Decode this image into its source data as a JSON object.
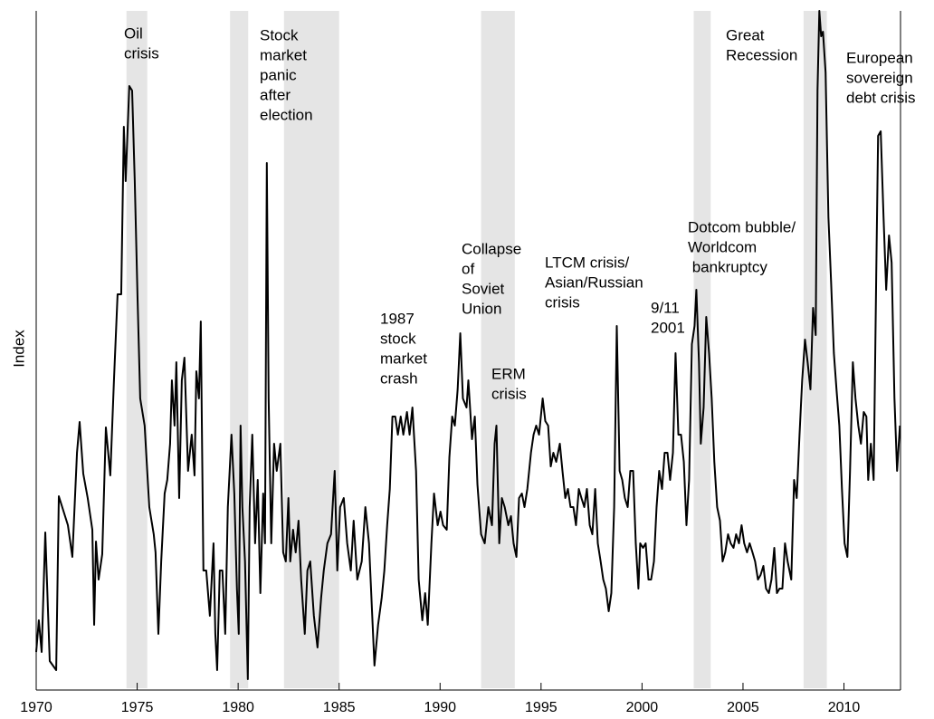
{
  "chart_data": {
    "type": "line",
    "y_label": "Index",
    "xlim": [
      1970,
      2012.8
    ],
    "ylim": [
      0,
      748
    ],
    "xticks": [
      1970,
      1975,
      1980,
      1985,
      1990,
      1995,
      2000,
      2005,
      2010
    ],
    "shaded_periods": [
      [
        1974.47,
        1975.5
      ],
      [
        1979.6,
        1980.5
      ],
      [
        1982.27,
        1985.0
      ],
      [
        1992.03,
        1993.7
      ],
      [
        2002.56,
        2003.4
      ],
      [
        2008.0,
        2009.15
      ]
    ],
    "shade_color": "#e5e5e5",
    "annotations": [
      {
        "lines": [
          "Oil",
          "crisis"
        ]
      },
      {
        "lines": [
          "Stock",
          "market",
          "panic",
          "after",
          "election"
        ]
      },
      {
        "lines": [
          "1987",
          "stock",
          "market",
          "crash"
        ]
      },
      {
        "lines": [
          "Collapse",
          "of",
          "Soviet",
          "Union"
        ]
      },
      {
        "lines": [
          "ERM",
          "crisis"
        ]
      },
      {
        "lines": [
          "LTCM crisis/",
          "Asian/Russian",
          "crisis"
        ]
      },
      {
        "lines": [
          "9/11",
          "2001"
        ]
      },
      {
        "lines": [
          "Dotcom bubble/",
          "Worldcom",
          " bankruptcy"
        ]
      },
      {
        "lines": [
          "Great",
          "Recession"
        ]
      },
      {
        "lines": [
          "European",
          "sovereign",
          "debt crisis"
        ]
      }
    ],
    "x": [
      1970.0,
      1970.13,
      1970.27,
      1970.45,
      1970.67,
      1970.99,
      1971.12,
      1971.57,
      1971.79,
      1972.02,
      1972.15,
      1972.33,
      1972.55,
      1972.78,
      1972.87,
      1972.96,
      1973.09,
      1973.27,
      1973.45,
      1973.67,
      1973.85,
      1974.03,
      1974.21,
      1974.34,
      1974.43,
      1974.61,
      1974.75,
      1974.88,
      1975.02,
      1975.15,
      1975.37,
      1975.6,
      1975.82,
      1975.91,
      1976.05,
      1976.19,
      1976.36,
      1976.49,
      1976.63,
      1976.72,
      1976.85,
      1976.94,
      1977.08,
      1977.21,
      1977.34,
      1977.52,
      1977.7,
      1977.84,
      1977.93,
      1978.06,
      1978.15,
      1978.28,
      1978.42,
      1978.6,
      1978.78,
      1978.87,
      1978.96,
      1979.09,
      1979.22,
      1979.36,
      1979.49,
      1979.67,
      1979.81,
      1979.94,
      1980.03,
      1980.12,
      1980.21,
      1980.34,
      1980.48,
      1980.57,
      1980.7,
      1980.84,
      1980.97,
      1981.1,
      1981.24,
      1981.33,
      1981.42,
      1981.51,
      1981.64,
      1981.78,
      1981.91,
      1982.09,
      1982.23,
      1982.36,
      1982.49,
      1982.58,
      1982.72,
      1982.85,
      1982.99,
      1983.12,
      1983.3,
      1983.43,
      1983.57,
      1983.75,
      1983.93,
      1984.11,
      1984.24,
      1984.42,
      1984.6,
      1984.78,
      1984.91,
      1985.05,
      1985.23,
      1985.4,
      1985.58,
      1985.72,
      1985.9,
      1986.12,
      1986.3,
      1986.48,
      1986.66,
      1986.75,
      1986.93,
      1987.11,
      1987.24,
      1987.38,
      1987.51,
      1987.64,
      1987.78,
      1987.91,
      1988.05,
      1988.18,
      1988.36,
      1988.49,
      1988.63,
      1988.81,
      1988.94,
      1989.12,
      1989.26,
      1989.39,
      1989.57,
      1989.7,
      1989.88,
      1990.02,
      1990.15,
      1990.33,
      1990.46,
      1990.6,
      1990.73,
      1990.87,
      1991.0,
      1991.13,
      1991.31,
      1991.4,
      1991.58,
      1991.72,
      1991.85,
      1992.03,
      1992.21,
      1992.39,
      1992.57,
      1992.7,
      1992.79,
      1992.93,
      1993.06,
      1993.2,
      1993.38,
      1993.51,
      1993.64,
      1993.78,
      1993.91,
      1994.05,
      1994.18,
      1994.32,
      1994.5,
      1994.63,
      1994.76,
      1994.9,
      1995.08,
      1995.21,
      1995.35,
      1995.48,
      1995.61,
      1995.75,
      1995.93,
      1996.06,
      1996.2,
      1996.33,
      1996.46,
      1996.6,
      1996.73,
      1996.87,
      1997.0,
      1997.14,
      1997.27,
      1997.41,
      1997.54,
      1997.68,
      1997.81,
      1997.95,
      1998.08,
      1998.21,
      1998.35,
      1998.48,
      1998.62,
      1998.75,
      1998.89,
      1999.02,
      1999.15,
      1999.29,
      1999.42,
      1999.56,
      1999.69,
      1999.82,
      1999.91,
      2000.05,
      2000.18,
      2000.32,
      2000.45,
      2000.59,
      2000.72,
      2000.85,
      2000.99,
      2001.12,
      2001.26,
      2001.39,
      2001.53,
      2001.66,
      2001.8,
      2001.93,
      2002.07,
      2002.2,
      2002.33,
      2002.47,
      2002.6,
      2002.69,
      2002.82,
      2002.91,
      2003.05,
      2003.18,
      2003.32,
      2003.45,
      2003.58,
      2003.72,
      2003.86,
      2003.99,
      2004.12,
      2004.26,
      2004.39,
      2004.53,
      2004.66,
      2004.8,
      2004.93,
      2005.06,
      2005.2,
      2005.33,
      2005.47,
      2005.6,
      2005.74,
      2005.87,
      2006.01,
      2006.14,
      2006.28,
      2006.41,
      2006.55,
      2006.68,
      2006.81,
      2006.95,
      2007.08,
      2007.21,
      2007.39,
      2007.53,
      2007.66,
      2007.8,
      2007.93,
      2008.07,
      2008.2,
      2008.34,
      2008.47,
      2008.6,
      2008.69,
      2008.78,
      2008.87,
      2008.96,
      2009.09,
      2009.23,
      2009.36,
      2009.5,
      2009.63,
      2009.77,
      2009.9,
      2010.03,
      2010.17,
      2010.3,
      2010.44,
      2010.57,
      2010.71,
      2010.84,
      2010.98,
      2011.11,
      2011.2,
      2011.33,
      2011.47,
      2011.6,
      2011.69,
      2011.82,
      2011.96,
      2012.09,
      2012.23,
      2012.36,
      2012.5,
      2012.63,
      2012.77
    ],
    "series": [
      {
        "color": "#000000",
        "values": [
          40,
          75,
          40,
          172,
          30,
          20,
          212,
          180,
          145,
          260,
          294,
          237,
          210,
          175,
          70,
          162,
          120,
          148,
          288,
          235,
          340,
          435,
          435,
          620,
          560,
          665,
          660,
          560,
          430,
          320,
          290,
          200,
          170,
          150,
          60,
          140,
          215,
          230,
          270,
          340,
          290,
          360,
          210,
          340,
          365,
          240,
          280,
          235,
          350,
          320,
          405,
          130,
          130,
          80,
          160,
          60,
          20,
          130,
          130,
          60,
          200,
          280,
          215,
          110,
          60,
          290,
          200,
          140,
          10,
          200,
          280,
          160,
          230,
          105,
          215,
          160,
          580,
          320,
          160,
          270,
          240,
          270,
          150,
          140,
          210,
          140,
          175,
          150,
          185,
          120,
          60,
          130,
          140,
          80,
          45,
          100,
          130,
          160,
          170,
          240,
          130,
          200,
          210,
          160,
          130,
          185,
          120,
          140,
          200,
          160,
          70,
          25,
          70,
          100,
          130,
          180,
          220,
          300,
          300,
          280,
          300,
          280,
          305,
          280,
          310,
          240,
          120,
          75,
          105,
          70,
          160,
          215,
          180,
          195,
          180,
          175,
          255,
          300,
          290,
          330,
          392,
          320,
          310,
          340,
          275,
          300,
          225,
          170,
          160,
          200,
          180,
          270,
          290,
          160,
          210,
          200,
          180,
          190,
          160,
          145,
          210,
          215,
          200,
          220,
          260,
          280,
          290,
          280,
          320,
          295,
          290,
          245,
          260,
          250,
          270,
          240,
          210,
          220,
          200,
          200,
          180,
          220,
          210,
          200,
          220,
          180,
          170,
          220,
          160,
          140,
          120,
          110,
          85,
          105,
          200,
          400,
          240,
          230,
          210,
          200,
          240,
          240,
          160,
          110,
          160,
          155,
          160,
          120,
          120,
          140,
          200,
          240,
          220,
          260,
          260,
          230,
          260,
          370,
          280,
          280,
          250,
          180,
          230,
          380,
          400,
          440,
          360,
          270,
          310,
          410,
          370,
          320,
          250,
          200,
          185,
          140,
          150,
          170,
          160,
          155,
          170,
          160,
          180,
          160,
          150,
          160,
          150,
          140,
          120,
          125,
          135,
          110,
          105,
          120,
          155,
          105,
          110,
          110,
          160,
          140,
          120,
          230,
          210,
          280,
          340,
          385,
          360,
          330,
          420,
          390,
          660,
          748,
          720,
          725,
          680,
          520,
          450,
          370,
          330,
          290,
          220,
          160,
          145,
          240,
          360,
          320,
          290,
          270,
          305,
          300,
          230,
          270,
          230,
          460,
          610,
          615,
          520,
          440,
          500,
          470,
          320,
          240,
          290
        ]
      }
    ]
  }
}
